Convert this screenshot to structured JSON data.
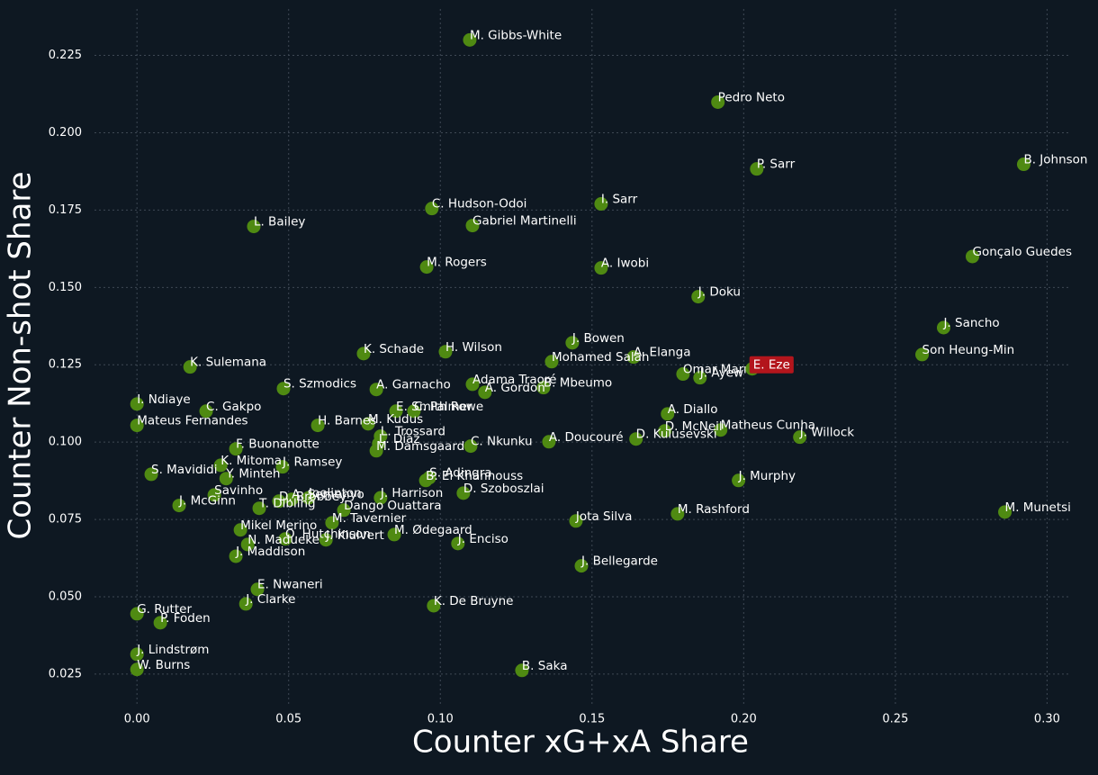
{
  "chart_data": {
    "type": "scatter",
    "xlabel": "Counter xG+xA Share",
    "ylabel": "Counter Non-shot Share",
    "xlim": [
      -0.014,
      0.307
    ],
    "ylim": [
      0.0145,
      0.24
    ],
    "xticks": [
      {
        "value": 0,
        "label": "0.00"
      },
      {
        "value": 0.05,
        "label": "0.05"
      },
      {
        "value": 0.1,
        "label": "0.10"
      },
      {
        "value": 0.15,
        "label": "0.15"
      },
      {
        "value": 0.2,
        "label": "0.20"
      },
      {
        "value": 0.25,
        "label": "0.25"
      },
      {
        "value": 0.3,
        "label": "0.30"
      }
    ],
    "yticks": [
      0.025,
      {
        "value": 0.05,
        "label": "0.050"
      },
      {
        "value": 0.075,
        "label": "0.075"
      },
      {
        "value": 0.1,
        "label": "0.100"
      },
      0.125,
      {
        "value": 0.15,
        "label": "0.150"
      },
      0.175,
      {
        "value": 0.2,
        "label": "0.200"
      },
      0.225
    ],
    "grid": true,
    "color": "#4f8a12",
    "labels": [
      "M. Gibbs-White",
      "Pedro Neto",
      "P. Sarr",
      "B. Johnson",
      "C. Hudson-Odoi",
      "I. Sarr",
      "Gabriel Martinelli",
      "L. Bailey",
      "Gonçalo Guedes",
      "M. Rogers",
      "A. Iwobi",
      "J. Doku",
      "J. Sancho",
      "J. Bowen",
      "K. Schade",
      "H. Wilson",
      "Son Heung-Min",
      "A. Elanga",
      "Mohamed Salah",
      "K. Sulemana",
      "Omar Marmoush",
      "J. Ayew",
      "Adama Traoré",
      "A. Gordon",
      "B. Mbeumo",
      "S. Szmodics",
      "A. Garnacho",
      "I. Ndiaye",
      "C. Gakpo",
      "E. Smith Rowe",
      "C. Palmer",
      "A. Diallo",
      "M. Kudus",
      "Mateus Fernandes",
      "H. Barnes",
      "D. McNeil",
      "Matheus Cunha",
      "J. Willock",
      "D. Kulusevski",
      "L. Trossard",
      "A. Doucouré",
      "L. Díaz",
      "C. Nkunku",
      "M. Damsgaard",
      "F. Buonanotte",
      "J. Ramsey",
      "K. Mitoma",
      "S. Mavididi",
      "Y. Minteh",
      "J. Murphy",
      "S. Adingra",
      "B. El Khannouss",
      "D. Szoboszlai",
      "Savinho",
      "J. Harrison",
      "Joelinton",
      "D. Brobbey",
      "A. Semenyo",
      "J. McGinn",
      "T. Dibling",
      "Dango Ouattara",
      "M. Munetsi",
      "M. Rashford",
      "Jota Silva",
      "M. Tavernier",
      "Mikel Merino",
      "M. Ødegaard",
      "O. Hutchinson",
      "J. Kluivert",
      "J. Enciso",
      "N. Madueke",
      "J. Maddison",
      "J. Bellegarde",
      "E. Nwaneri",
      "J. Clarke",
      "K. De Bruyne",
      "G. Rutter",
      "P. Foden",
      "J. Lindstrøm",
      "W. Burns",
      "B. Saka"
    ],
    "x": [
      0.1097,
      0.1915,
      0.2043,
      0.2923,
      0.0972,
      0.153,
      0.1106,
      0.0385,
      0.2754,
      0.0955,
      0.153,
      0.185,
      0.2659,
      0.1435,
      0.0747,
      0.1017,
      0.2588,
      0.1637,
      0.1367,
      0.0175,
      0.18,
      0.1856,
      0.1106,
      0.1147,
      0.134,
      0.0483,
      0.0789,
      0,
      0.0228,
      0.0854,
      0.0913,
      0.1749,
      0.0762,
      0,
      0.0596,
      0.174,
      0.1924,
      0.2185,
      0.1645,
      0.0803,
      0.1358,
      0.0797,
      0.11,
      0.0789,
      0.0326,
      0.048,
      0.0276,
      0.0047,
      0.0294,
      0.1983,
      0.0964,
      0.0952,
      0.1076,
      0.0255,
      0.0803,
      0.0566,
      0.0468,
      0.051,
      0.0139,
      0.0403,
      0.0682,
      0.2861,
      0.1782,
      0.1447,
      0.0643,
      0.0341,
      0.0848,
      0.0489,
      0.0623,
      0.1058,
      0.0365,
      0.0326,
      0.1465,
      0.0397,
      0.0359,
      0.0978,
      0,
      0.0077,
      0,
      0,
      0.1269
    ],
    "y": [
      0.23,
      0.2099,
      0.1883,
      0.1898,
      0.1755,
      0.177,
      0.17,
      0.1697,
      0.16,
      0.1566,
      0.1563,
      0.147,
      0.137,
      0.1321,
      0.1286,
      0.1292,
      0.1283,
      0.1275,
      0.126,
      0.1243,
      0.122,
      0.1208,
      0.1187,
      0.1161,
      0.1176,
      0.1173,
      0.117,
      0.1123,
      0.11,
      0.11,
      0.11,
      0.1091,
      0.1059,
      0.1054,
      0.1054,
      0.1036,
      0.1039,
      0.1016,
      0.101,
      0.1019,
      0.1001,
      0.0995,
      0.0987,
      0.0972,
      0.0978,
      0.092,
      0.0925,
      0.0896,
      0.0882,
      0.0876,
      0.0885,
      0.0876,
      0.0835,
      0.0829,
      0.082,
      0.082,
      0.0809,
      0.0815,
      0.0795,
      0.0786,
      0.078,
      0.0774,
      0.0768,
      0.0745,
      0.0739,
      0.0716,
      0.0701,
      0.0687,
      0.0684,
      0.0672,
      0.0669,
      0.0631,
      0.06,
      0.0524,
      0.0477,
      0.0471,
      0.0445,
      0.0416,
      0.0314,
      0.0265,
      0.0262
    ],
    "highlight": {
      "label": "E. Eze",
      "x": 0.2028,
      "y": 0.1237,
      "color": "#b3151c"
    }
  }
}
